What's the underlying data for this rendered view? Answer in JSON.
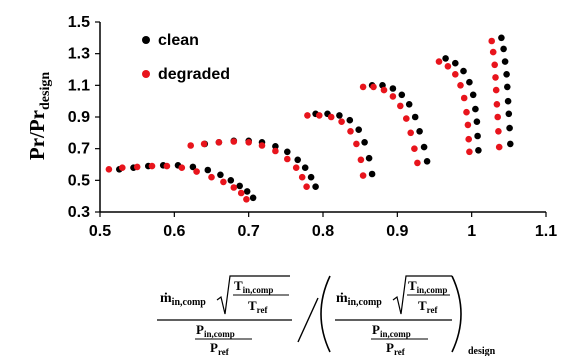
{
  "chart_data": {
    "type": "scatter",
    "title": "",
    "ylabel": {
      "main": "Pr/Pr",
      "sub": "design"
    },
    "xlabel": {
      "mdot": "ṁ",
      "mdot_sub": "in,comp",
      "t_num": "T",
      "t_num_sub": "in,comp",
      "t_den": "T",
      "t_den_sub": "ref",
      "p_num": "P",
      "p_num_sub": "in,comp",
      "p_den": "P",
      "p_den_sub": "ref",
      "design_sub": "design"
    },
    "xlim": [
      0.5,
      1.1
    ],
    "ylim": [
      0.3,
      1.5
    ],
    "xticks": [
      "0.5",
      "0.6",
      "0.7",
      "0.8",
      "0.9",
      "1",
      "1.1"
    ],
    "yticks": [
      "0.3",
      "0.5",
      "0.7",
      "0.9",
      "1.1",
      "1.3",
      "1.5"
    ],
    "grid": false,
    "legend_position": "top-left",
    "series": [
      {
        "name": "clean",
        "color": "#000000",
        "lines": [
          {
            "x": [
              0.526,
              0.545,
              0.565,
              0.585,
              0.605,
              0.625,
              0.645,
              0.662,
              0.676,
              0.688,
              0.698,
              0.706
            ],
            "y": [
              0.57,
              0.58,
              0.59,
              0.595,
              0.595,
              0.585,
              0.565,
              0.535,
              0.5,
              0.465,
              0.43,
              0.39
            ]
          },
          {
            "x": [
              0.641,
              0.66,
              0.68,
              0.7,
              0.718,
              0.736,
              0.752,
              0.766,
              0.776,
              0.784,
              0.79
            ],
            "y": [
              0.73,
              0.74,
              0.75,
              0.75,
              0.74,
              0.715,
              0.68,
              0.63,
              0.58,
              0.52,
              0.46
            ]
          },
          {
            "x": [
              0.79,
              0.806,
              0.822,
              0.836,
              0.848,
              0.856,
              0.862,
              0.866
            ],
            "y": [
              0.92,
              0.92,
              0.91,
              0.88,
              0.82,
              0.74,
              0.64,
              0.54
            ]
          },
          {
            "x": [
              0.866,
              0.88,
              0.894,
              0.906,
              0.916,
              0.924,
              0.93,
              0.936,
              0.94
            ],
            "y": [
              1.1,
              1.1,
              1.08,
              1.04,
              0.98,
              0.9,
              0.81,
              0.71,
              0.62
            ]
          },
          {
            "x": [
              0.965,
              0.978,
              0.989,
              0.997,
              1.002,
              1.005,
              1.007,
              1.008,
              1.009
            ],
            "y": [
              1.27,
              1.24,
              1.19,
              1.12,
              1.04,
              0.95,
              0.87,
              0.78,
              0.69
            ]
          },
          {
            "x": [
              1.04,
              1.043,
              1.045,
              1.047,
              1.048,
              1.049,
              1.05,
              1.051,
              1.052
            ],
            "y": [
              1.4,
              1.33,
              1.25,
              1.17,
              1.09,
              1.0,
              0.92,
              0.83,
              0.73
            ]
          }
        ]
      },
      {
        "name": "degraded",
        "color": "#e8141c",
        "lines": [
          {
            "x": [
              0.512,
              0.53,
              0.55,
              0.57,
              0.59,
              0.61,
              0.63,
              0.65,
              0.666,
              0.68,
              0.69,
              0.697
            ],
            "y": [
              0.57,
              0.58,
              0.585,
              0.59,
              0.59,
              0.58,
              0.555,
              0.52,
              0.49,
              0.455,
              0.42,
              0.38
            ]
          },
          {
            "x": [
              0.622,
              0.64,
              0.66,
              0.68,
              0.7,
              0.718,
              0.736,
              0.752,
              0.764,
              0.772,
              0.778
            ],
            "y": [
              0.72,
              0.73,
              0.74,
              0.745,
              0.74,
              0.72,
              0.685,
              0.635,
              0.58,
              0.52,
              0.46
            ]
          },
          {
            "x": [
              0.779,
              0.795,
              0.811,
              0.825,
              0.837,
              0.845,
              0.851,
              0.854
            ],
            "y": [
              0.91,
              0.91,
              0.9,
              0.87,
              0.81,
              0.73,
              0.63,
              0.53
            ]
          },
          {
            "x": [
              0.854,
              0.868,
              0.882,
              0.894,
              0.904,
              0.912,
              0.918,
              0.923,
              0.927
            ],
            "y": [
              1.09,
              1.09,
              1.07,
              1.03,
              0.97,
              0.89,
              0.8,
              0.7,
              0.61
            ]
          },
          {
            "x": [
              0.956,
              0.968,
              0.978,
              0.985,
              0.99,
              0.993,
              0.995,
              0.996,
              0.997
            ],
            "y": [
              1.25,
              1.22,
              1.17,
              1.1,
              1.02,
              0.93,
              0.85,
              0.76,
              0.68
            ]
          },
          {
            "x": [
              1.027,
              1.029,
              1.031,
              1.032,
              1.033,
              1.034,
              1.035,
              1.036,
              1.037
            ],
            "y": [
              1.38,
              1.31,
              1.23,
              1.15,
              1.07,
              0.98,
              0.9,
              0.81,
              0.71
            ]
          }
        ]
      }
    ]
  }
}
